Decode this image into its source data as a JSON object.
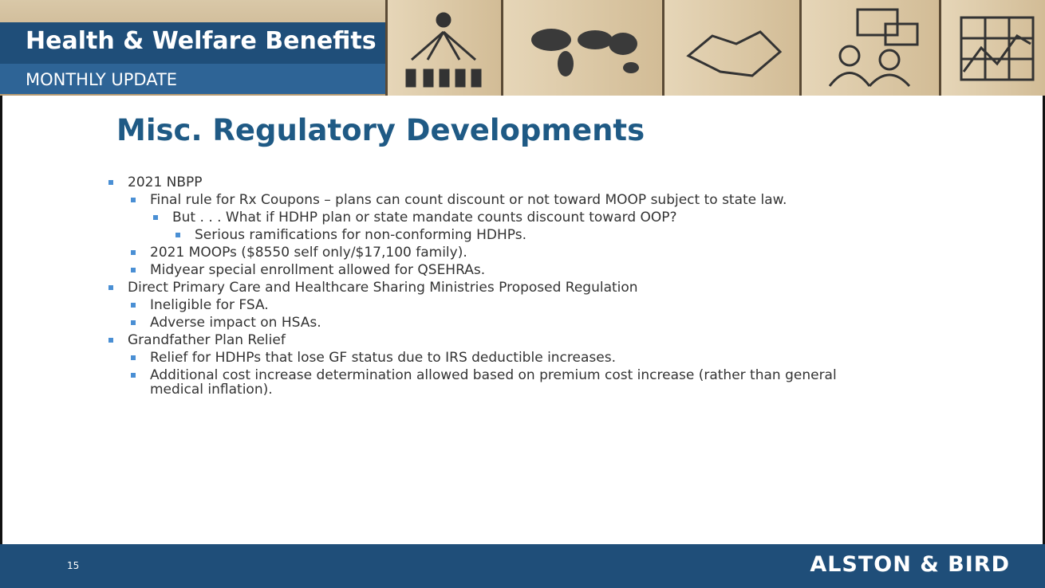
{
  "header": {
    "title": "Health & Welfare Benefits",
    "subtitle": "MONTHLY UPDATE"
  },
  "slide": {
    "title": "Misc. Regulatory Developments",
    "bullets": [
      {
        "text": "2021 NBPP",
        "children": [
          {
            "text": "Final rule for Rx Coupons – plans can count discount or not toward MOOP subject to state law.",
            "children": [
              {
                "text": "But . . . What if HDHP plan or state mandate counts discount toward OOP?",
                "children": [
                  {
                    "text": "Serious ramifications for non-conforming HDHPs."
                  }
                ]
              }
            ]
          },
          {
            "text": "2021 MOOPs ($8550 self only/$17,100 family)."
          },
          {
            "text": "Midyear special enrollment allowed for QSEHRAs."
          }
        ]
      },
      {
        "text": "Direct Primary Care and Healthcare Sharing Ministries Proposed Regulation",
        "children": [
          {
            "text": "Ineligible for FSA."
          },
          {
            "text": "Adverse impact on HSAs."
          }
        ]
      },
      {
        "text": "Grandfather Plan Relief",
        "children": [
          {
            "text": "Relief for HDHPs that lose GF status due to IRS deductible increases."
          },
          {
            "text": "Additional cost increase determination allowed based on premium cost increase (rather than general medical inflation)."
          }
        ]
      }
    ]
  },
  "footer": {
    "page_number": "15",
    "brand": "ALSTON & BIRD"
  }
}
